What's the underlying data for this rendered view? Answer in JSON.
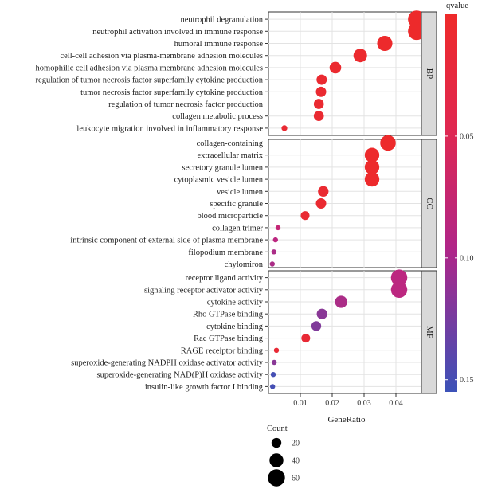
{
  "chart_data": {
    "type": "scatter",
    "xlabel": "GeneRatio",
    "xlim": [
      0,
      0.048
    ],
    "x_ticks": [
      "0.01",
      "0.02",
      "0.03",
      "0.04"
    ],
    "x_tick_values": [
      0.01,
      0.02,
      0.03,
      0.04
    ],
    "color_legend": {
      "title": "qvalue",
      "ticks": [
        "0.05",
        "0.10",
        "0.15"
      ],
      "tick_values": [
        0.05,
        0.1,
        0.15
      ],
      "range": [
        0.0,
        0.155
      ],
      "low_color": "#ee2a2a",
      "mid_color": "#c0267e",
      "high_color": "#3c52b8"
    },
    "size_legend": {
      "title": "Count",
      "labels": [
        "20",
        "40",
        "60"
      ],
      "values": [
        20,
        40,
        60
      ]
    },
    "panels": [
      {
        "name": "BP",
        "terms": [
          {
            "label": "neutrophil degranulation",
            "x": 0.0465,
            "q": 0.001,
            "count": 62
          },
          {
            "label": "neutrophil activation involved in immune response",
            "x": 0.0465,
            "q": 0.001,
            "count": 62
          },
          {
            "label": "humoral immune response",
            "x": 0.0365,
            "q": 0.002,
            "count": 48
          },
          {
            "label": "cell-cell adhesion via plasma-membrane adhesion molecules",
            "x": 0.0288,
            "q": 0.004,
            "count": 38
          },
          {
            "label": "homophilic cell adhesion via plasma membrane adhesion molecules",
            "x": 0.021,
            "q": 0.005,
            "count": 28
          },
          {
            "label": "regulation of tumor necrosis factor superfamily cytokine production",
            "x": 0.0167,
            "q": 0.006,
            "count": 22
          },
          {
            "label": "tumor necrosis factor superfamily cytokine production",
            "x": 0.0165,
            "q": 0.006,
            "count": 22
          },
          {
            "label": "regulation of tumor necrosis factor production",
            "x": 0.0158,
            "q": 0.006,
            "count": 21
          },
          {
            "label": "collagen metabolic process",
            "x": 0.0158,
            "q": 0.007,
            "count": 21
          },
          {
            "label": "leukocyte migration involved in inflammatory response",
            "x": 0.005,
            "q": 0.008,
            "count": 7
          }
        ]
      },
      {
        "name": "CC",
        "terms": [
          {
            "label": "collagen-containing",
            "x": 0.0375,
            "q": 0.001,
            "count": 50
          },
          {
            "label": "extracellular matrix",
            "x": 0.0325,
            "q": 0.002,
            "count": 44
          },
          {
            "label": "secretory granule lumen",
            "x": 0.0325,
            "q": 0.002,
            "count": 44
          },
          {
            "label": "cytoplasmic vesicle lumen",
            "x": 0.0325,
            "q": 0.002,
            "count": 44
          },
          {
            "label": "vesicle lumen",
            "x": 0.0172,
            "q": 0.006,
            "count": 23
          },
          {
            "label": "specific granule",
            "x": 0.0165,
            "q": 0.006,
            "count": 22
          },
          {
            "label": "blood microparticle",
            "x": 0.0115,
            "q": 0.008,
            "count": 16
          },
          {
            "label": "collagen trimer",
            "x": 0.003,
            "q": 0.07,
            "count": 4
          },
          {
            "label": "intrinsic component of external side of plasma membrane",
            "x": 0.0022,
            "q": 0.08,
            "count": 3
          },
          {
            "label": "filopodium membrane",
            "x": 0.0017,
            "q": 0.09,
            "count": 3
          },
          {
            "label": "chylomiron",
            "x": 0.0012,
            "q": 0.09,
            "count": 2
          }
        ]
      },
      {
        "name": "MF",
        "terms": [
          {
            "label": "receptor ligand activity",
            "x": 0.041,
            "q": 0.08,
            "count": 55
          },
          {
            "label": "signaling receptor activator activity",
            "x": 0.041,
            "q": 0.08,
            "count": 55
          },
          {
            "label": "cytokine activity",
            "x": 0.0228,
            "q": 0.09,
            "count": 31
          },
          {
            "label": "Rho GTPase binding",
            "x": 0.0168,
            "q": 0.11,
            "count": 23
          },
          {
            "label": "cytokine binding",
            "x": 0.015,
            "q": 0.115,
            "count": 20
          },
          {
            "label": "Rac GTPase binding",
            "x": 0.0117,
            "q": 0.01,
            "count": 16
          },
          {
            "label": "RAGE receiptor binding",
            "x": 0.0025,
            "q": 0.01,
            "count": 4
          },
          {
            "label": "superoxide-generating NADPH oxidase activator activity",
            "x": 0.0018,
            "q": 0.11,
            "count": 3
          },
          {
            "label": "superoxide-generating NAD(P)H oxidase activity",
            "x": 0.0015,
            "q": 0.15,
            "count": 3
          },
          {
            "label": "insulin-like growth factor I binding",
            "x": 0.0013,
            "q": 0.15,
            "count": 3
          }
        ]
      }
    ]
  }
}
